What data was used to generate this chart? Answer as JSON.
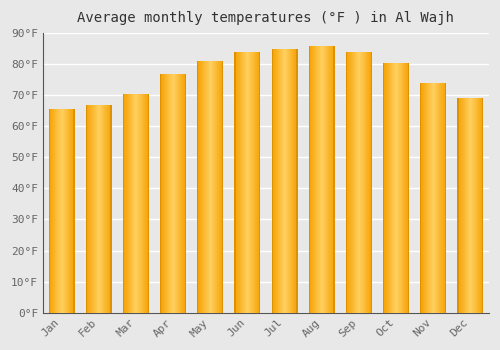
{
  "title": "Average monthly temperatures (°F ) in Al Wajh",
  "months": [
    "Jan",
    "Feb",
    "Mar",
    "Apr",
    "May",
    "Jun",
    "Jul",
    "Aug",
    "Sep",
    "Oct",
    "Nov",
    "Dec"
  ],
  "values": [
    65.5,
    67.0,
    70.5,
    77.0,
    81.0,
    84.0,
    85.0,
    86.0,
    84.0,
    80.5,
    74.0,
    69.0
  ],
  "bar_color_light": "#FFD060",
  "bar_color_dark": "#F5A000",
  "bar_edge_color": "#CC8800",
  "ylim": [
    0,
    90
  ],
  "yticks": [
    0,
    10,
    20,
    30,
    40,
    50,
    60,
    70,
    80,
    90
  ],
  "ytick_labels": [
    "0°F",
    "10°F",
    "20°F",
    "30°F",
    "40°F",
    "50°F",
    "60°F",
    "70°F",
    "80°F",
    "90°F"
  ],
  "background_color": "#e8e8e8",
  "plot_bg_color": "#e8e8e8",
  "grid_color": "#ffffff",
  "title_fontsize": 10,
  "tick_fontsize": 8,
  "bar_width": 0.7
}
